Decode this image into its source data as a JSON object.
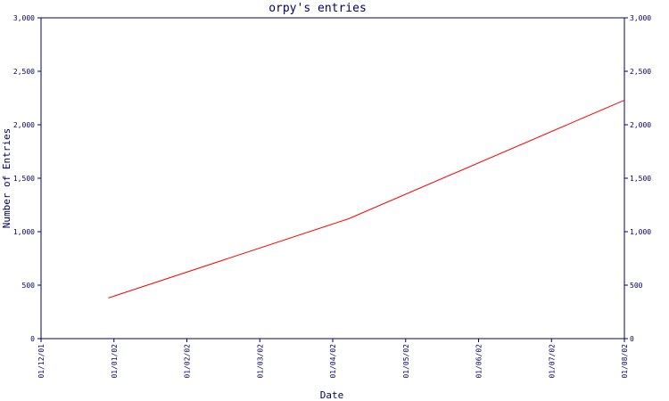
{
  "chart_data": {
    "type": "line",
    "title": "orpy's entries",
    "xlabel": "Date",
    "ylabel": "Number of Entries",
    "x_tick_labels": [
      "01/12/01",
      "01/01/02",
      "01/02/02",
      "01/03/02",
      "01/04/02",
      "01/05/02",
      "01/06/02",
      "01/07/02",
      "01/08/02"
    ],
    "y_tick_labels": [
      "0",
      "500",
      "1,000",
      "1,500",
      "2,000",
      "2,500",
      "3,000"
    ],
    "y_tick_values": [
      0,
      500,
      1000,
      1500,
      2000,
      2500,
      3000
    ],
    "ylim": [
      0,
      3000
    ],
    "xlim": [
      "2001-12-01",
      "2002-08-01"
    ],
    "grid": false,
    "colors": {
      "axis": "#000066",
      "line": "#ff0000",
      "background": "#ffffff"
    },
    "series": [
      {
        "x": [
          "2001-12-29",
          "2002-04-08",
          "2002-08-01"
        ],
        "y": [
          380,
          1120,
          2230
        ]
      }
    ]
  }
}
